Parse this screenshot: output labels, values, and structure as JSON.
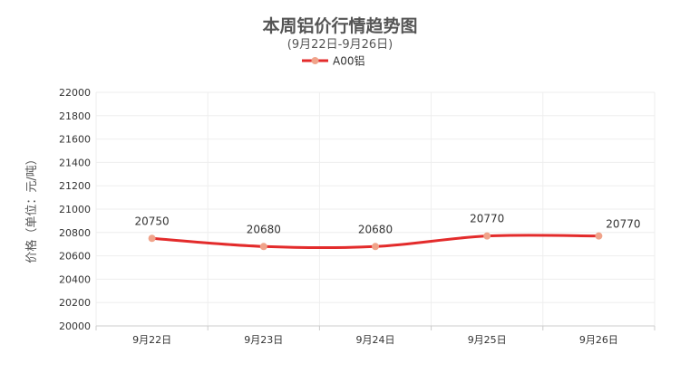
{
  "chart_data": {
    "type": "line",
    "title": "本周铝价行情趋势图",
    "subtitle": "(9月22日-9月26日)",
    "categories": [
      "9月22日",
      "9月23日",
      "9月24日",
      "9月25日",
      "9月26日"
    ],
    "series": [
      {
        "name": "A00铝",
        "values": [
          20750,
          20680,
          20680,
          20770,
          20770
        ]
      }
    ],
    "xlabel": "",
    "ylabel": "价格（单位：元/吨）",
    "ylim": [
      20000,
      22000
    ],
    "yticks": [
      20000,
      20200,
      20400,
      20600,
      20800,
      21000,
      21200,
      21400,
      21600,
      21800,
      22000
    ],
    "grid": true,
    "smooth": true,
    "data_labels": true,
    "legend_position": "top-center",
    "colors": {
      "line": "#e32b2b",
      "marker": "#f0a38a",
      "grid": "#eeeeee",
      "axis": "#cccccc",
      "text": "#333333"
    }
  }
}
